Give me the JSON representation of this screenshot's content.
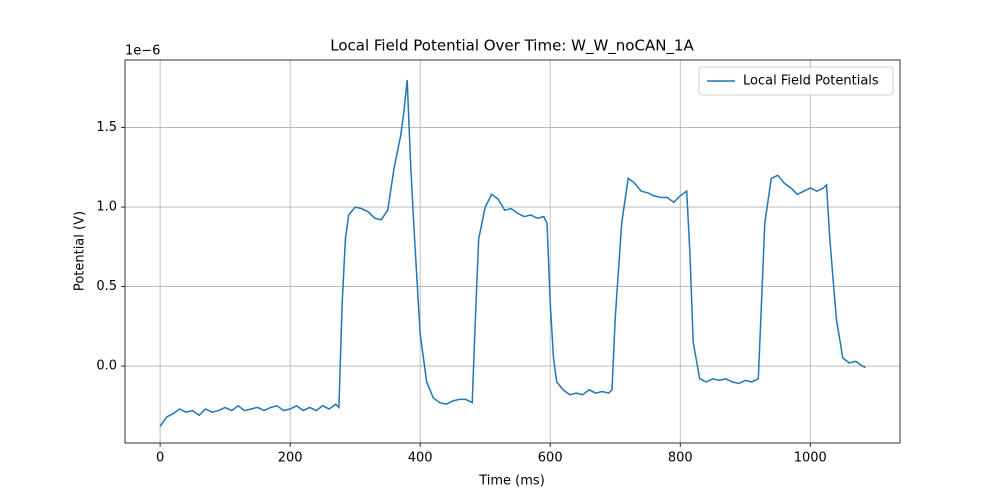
{
  "chart_data": {
    "type": "line",
    "title": "Local Field Potential Over Time: W_W_noCAN_1A",
    "x_label": "Time (ms)",
    "y_label": "Potential (V)",
    "y_offset_text": "1e−6",
    "x": [
      0,
      10,
      20,
      30,
      40,
      50,
      60,
      70,
      80,
      90,
      100,
      110,
      120,
      130,
      140,
      150,
      160,
      170,
      180,
      190,
      200,
      210,
      220,
      230,
      240,
      250,
      260,
      270,
      275,
      280,
      285,
      290,
      300,
      310,
      320,
      330,
      340,
      350,
      360,
      370,
      375,
      380,
      385,
      390,
      395,
      400,
      410,
      420,
      430,
      440,
      450,
      460,
      470,
      480,
      485,
      490,
      500,
      510,
      520,
      530,
      540,
      550,
      560,
      570,
      580,
      590,
      595,
      600,
      605,
      610,
      620,
      630,
      640,
      650,
      660,
      670,
      680,
      690,
      695,
      700,
      710,
      720,
      730,
      740,
      750,
      760,
      770,
      780,
      790,
      800,
      810,
      815,
      820,
      830,
      840,
      850,
      860,
      870,
      880,
      890,
      900,
      910,
      920,
      925,
      930,
      940,
      950,
      960,
      970,
      980,
      990,
      1000,
      1010,
      1020,
      1025,
      1030,
      1040,
      1050,
      1060,
      1070,
      1080,
      1085
    ],
    "series": [
      {
        "name": "Local Field Potentials",
        "color": "#1f77b4",
        "values": [
          -0.38,
          -0.32,
          -0.3,
          -0.27,
          -0.29,
          -0.28,
          -0.31,
          -0.27,
          -0.29,
          -0.28,
          -0.26,
          -0.28,
          -0.25,
          -0.28,
          -0.27,
          -0.26,
          -0.28,
          -0.26,
          -0.25,
          -0.28,
          -0.27,
          -0.25,
          -0.28,
          -0.26,
          -0.28,
          -0.25,
          -0.27,
          -0.24,
          -0.26,
          0.4,
          0.8,
          0.95,
          1.0,
          0.99,
          0.97,
          0.93,
          0.92,
          0.98,
          1.25,
          1.45,
          1.6,
          1.8,
          1.3,
          0.9,
          0.55,
          0.2,
          -0.1,
          -0.2,
          -0.23,
          -0.24,
          -0.22,
          -0.21,
          -0.21,
          -0.23,
          0.3,
          0.8,
          1.0,
          1.08,
          1.05,
          0.98,
          0.99,
          0.96,
          0.94,
          0.95,
          0.93,
          0.94,
          0.9,
          0.4,
          0.05,
          -0.1,
          -0.15,
          -0.18,
          -0.17,
          -0.18,
          -0.15,
          -0.17,
          -0.16,
          -0.17,
          -0.15,
          0.3,
          0.9,
          1.18,
          1.15,
          1.1,
          1.09,
          1.07,
          1.06,
          1.06,
          1.03,
          1.07,
          1.1,
          0.7,
          0.15,
          -0.08,
          -0.1,
          -0.08,
          -0.09,
          -0.08,
          -0.1,
          -0.11,
          -0.09,
          -0.1,
          -0.08,
          0.4,
          0.9,
          1.18,
          1.2,
          1.15,
          1.12,
          1.08,
          1.1,
          1.12,
          1.1,
          1.12,
          1.14,
          0.8,
          0.3,
          0.05,
          0.02,
          0.03,
          0.0,
          -0.01
        ]
      }
    ],
    "xlim": [
      -54,
      1138
    ],
    "ylim": [
      -0.484,
      1.925
    ],
    "xticks": [
      0,
      200,
      400,
      600,
      800,
      1000
    ],
    "yticks": [
      {
        "value": 0,
        "label": "0.0"
      },
      0.5,
      {
        "value": 1,
        "label": "1.0"
      },
      1.5
    ],
    "grid": true,
    "legend": "upper right"
  }
}
